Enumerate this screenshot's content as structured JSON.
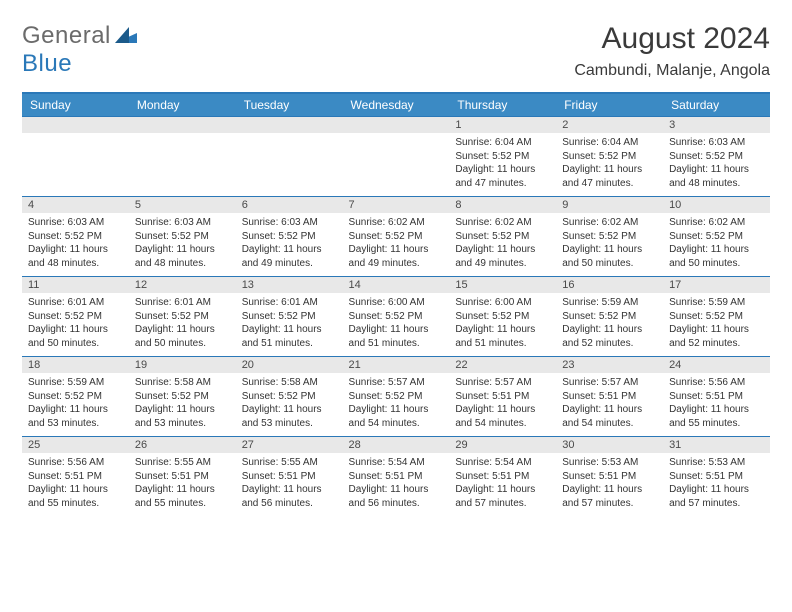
{
  "header": {
    "logo_general": "General",
    "logo_blue": "Blue",
    "title": "August 2024",
    "location": "Cambundi, Malanje, Angola"
  },
  "colors": {
    "header_bg": "#3b8ac4",
    "accent_border": "#2a78b8",
    "daynum_bg": "#e8e8e8",
    "text": "#333333",
    "logo_gray": "#6b6b6b"
  },
  "calendar": {
    "day_headers": [
      "Sunday",
      "Monday",
      "Tuesday",
      "Wednesday",
      "Thursday",
      "Friday",
      "Saturday"
    ],
    "weeks": [
      [
        {
          "num": "",
          "lines": []
        },
        {
          "num": "",
          "lines": []
        },
        {
          "num": "",
          "lines": []
        },
        {
          "num": "",
          "lines": []
        },
        {
          "num": "1",
          "lines": [
            "Sunrise: 6:04 AM",
            "Sunset: 5:52 PM",
            "Daylight: 11 hours and 47 minutes."
          ]
        },
        {
          "num": "2",
          "lines": [
            "Sunrise: 6:04 AM",
            "Sunset: 5:52 PM",
            "Daylight: 11 hours and 47 minutes."
          ]
        },
        {
          "num": "3",
          "lines": [
            "Sunrise: 6:03 AM",
            "Sunset: 5:52 PM",
            "Daylight: 11 hours and 48 minutes."
          ]
        }
      ],
      [
        {
          "num": "4",
          "lines": [
            "Sunrise: 6:03 AM",
            "Sunset: 5:52 PM",
            "Daylight: 11 hours and 48 minutes."
          ]
        },
        {
          "num": "5",
          "lines": [
            "Sunrise: 6:03 AM",
            "Sunset: 5:52 PM",
            "Daylight: 11 hours and 48 minutes."
          ]
        },
        {
          "num": "6",
          "lines": [
            "Sunrise: 6:03 AM",
            "Sunset: 5:52 PM",
            "Daylight: 11 hours and 49 minutes."
          ]
        },
        {
          "num": "7",
          "lines": [
            "Sunrise: 6:02 AM",
            "Sunset: 5:52 PM",
            "Daylight: 11 hours and 49 minutes."
          ]
        },
        {
          "num": "8",
          "lines": [
            "Sunrise: 6:02 AM",
            "Sunset: 5:52 PM",
            "Daylight: 11 hours and 49 minutes."
          ]
        },
        {
          "num": "9",
          "lines": [
            "Sunrise: 6:02 AM",
            "Sunset: 5:52 PM",
            "Daylight: 11 hours and 50 minutes."
          ]
        },
        {
          "num": "10",
          "lines": [
            "Sunrise: 6:02 AM",
            "Sunset: 5:52 PM",
            "Daylight: 11 hours and 50 minutes."
          ]
        }
      ],
      [
        {
          "num": "11",
          "lines": [
            "Sunrise: 6:01 AM",
            "Sunset: 5:52 PM",
            "Daylight: 11 hours and 50 minutes."
          ]
        },
        {
          "num": "12",
          "lines": [
            "Sunrise: 6:01 AM",
            "Sunset: 5:52 PM",
            "Daylight: 11 hours and 50 minutes."
          ]
        },
        {
          "num": "13",
          "lines": [
            "Sunrise: 6:01 AM",
            "Sunset: 5:52 PM",
            "Daylight: 11 hours and 51 minutes."
          ]
        },
        {
          "num": "14",
          "lines": [
            "Sunrise: 6:00 AM",
            "Sunset: 5:52 PM",
            "Daylight: 11 hours and 51 minutes."
          ]
        },
        {
          "num": "15",
          "lines": [
            "Sunrise: 6:00 AM",
            "Sunset: 5:52 PM",
            "Daylight: 11 hours and 51 minutes."
          ]
        },
        {
          "num": "16",
          "lines": [
            "Sunrise: 5:59 AM",
            "Sunset: 5:52 PM",
            "Daylight: 11 hours and 52 minutes."
          ]
        },
        {
          "num": "17",
          "lines": [
            "Sunrise: 5:59 AM",
            "Sunset: 5:52 PM",
            "Daylight: 11 hours and 52 minutes."
          ]
        }
      ],
      [
        {
          "num": "18",
          "lines": [
            "Sunrise: 5:59 AM",
            "Sunset: 5:52 PM",
            "Daylight: 11 hours and 53 minutes."
          ]
        },
        {
          "num": "19",
          "lines": [
            "Sunrise: 5:58 AM",
            "Sunset: 5:52 PM",
            "Daylight: 11 hours and 53 minutes."
          ]
        },
        {
          "num": "20",
          "lines": [
            "Sunrise: 5:58 AM",
            "Sunset: 5:52 PM",
            "Daylight: 11 hours and 53 minutes."
          ]
        },
        {
          "num": "21",
          "lines": [
            "Sunrise: 5:57 AM",
            "Sunset: 5:52 PM",
            "Daylight: 11 hours and 54 minutes."
          ]
        },
        {
          "num": "22",
          "lines": [
            "Sunrise: 5:57 AM",
            "Sunset: 5:51 PM",
            "Daylight: 11 hours and 54 minutes."
          ]
        },
        {
          "num": "23",
          "lines": [
            "Sunrise: 5:57 AM",
            "Sunset: 5:51 PM",
            "Daylight: 11 hours and 54 minutes."
          ]
        },
        {
          "num": "24",
          "lines": [
            "Sunrise: 5:56 AM",
            "Sunset: 5:51 PM",
            "Daylight: 11 hours and 55 minutes."
          ]
        }
      ],
      [
        {
          "num": "25",
          "lines": [
            "Sunrise: 5:56 AM",
            "Sunset: 5:51 PM",
            "Daylight: 11 hours and 55 minutes."
          ]
        },
        {
          "num": "26",
          "lines": [
            "Sunrise: 5:55 AM",
            "Sunset: 5:51 PM",
            "Daylight: 11 hours and 55 minutes."
          ]
        },
        {
          "num": "27",
          "lines": [
            "Sunrise: 5:55 AM",
            "Sunset: 5:51 PM",
            "Daylight: 11 hours and 56 minutes."
          ]
        },
        {
          "num": "28",
          "lines": [
            "Sunrise: 5:54 AM",
            "Sunset: 5:51 PM",
            "Daylight: 11 hours and 56 minutes."
          ]
        },
        {
          "num": "29",
          "lines": [
            "Sunrise: 5:54 AM",
            "Sunset: 5:51 PM",
            "Daylight: 11 hours and 57 minutes."
          ]
        },
        {
          "num": "30",
          "lines": [
            "Sunrise: 5:53 AM",
            "Sunset: 5:51 PM",
            "Daylight: 11 hours and 57 minutes."
          ]
        },
        {
          "num": "31",
          "lines": [
            "Sunrise: 5:53 AM",
            "Sunset: 5:51 PM",
            "Daylight: 11 hours and 57 minutes."
          ]
        }
      ]
    ]
  }
}
